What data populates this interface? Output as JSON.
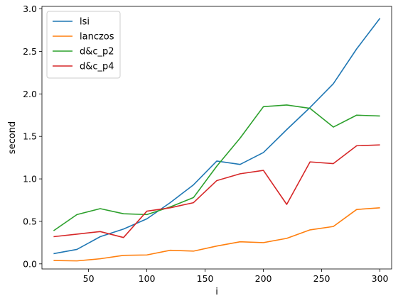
{
  "chart_data": {
    "type": "line",
    "title": "",
    "xlabel": "i",
    "ylabel": "second",
    "xlim": [
      10,
      310
    ],
    "ylim": [
      -0.06,
      3.03
    ],
    "x_ticks": [
      50,
      100,
      150,
      200,
      250,
      300
    ],
    "x_tick_labels": [
      "50",
      "100",
      "150",
      "200",
      "250",
      "300"
    ],
    "y_ticks": [
      0.0,
      0.5,
      1.0,
      1.5,
      2.0,
      2.5,
      3.0
    ],
    "y_tick_labels": [
      "0.0",
      "0.5",
      "1.0",
      "1.5",
      "2.0",
      "2.5",
      "3.0"
    ],
    "grid": false,
    "legend_position": "upper-left",
    "x": [
      20,
      40,
      60,
      80,
      100,
      120,
      140,
      160,
      180,
      200,
      220,
      240,
      260,
      280,
      300
    ],
    "series": [
      {
        "name": "lsi",
        "color": "#1f77b4",
        "values": [
          0.12,
          0.17,
          0.32,
          0.41,
          0.53,
          0.72,
          0.93,
          1.21,
          1.17,
          1.31,
          1.58,
          1.84,
          2.12,
          2.53,
          2.89
        ]
      },
      {
        "name": "lanczos",
        "color": "#ff7f0e",
        "values": [
          0.04,
          0.035,
          0.06,
          0.1,
          0.105,
          0.16,
          0.15,
          0.21,
          0.26,
          0.25,
          0.3,
          0.4,
          0.44,
          0.64,
          0.66
        ]
      },
      {
        "name": "d&c_p2",
        "color": "#2ca02c",
        "values": [
          0.39,
          0.58,
          0.65,
          0.59,
          0.58,
          0.67,
          0.78,
          1.15,
          1.48,
          1.85,
          1.87,
          1.83,
          1.61,
          1.75,
          1.74
        ]
      },
      {
        "name": "d&c_p4",
        "color": "#d62728",
        "values": [
          0.32,
          0.35,
          0.38,
          0.31,
          0.62,
          0.66,
          0.72,
          0.98,
          1.06,
          1.1,
          0.7,
          1.2,
          1.18,
          1.39,
          1.4
        ]
      }
    ]
  }
}
